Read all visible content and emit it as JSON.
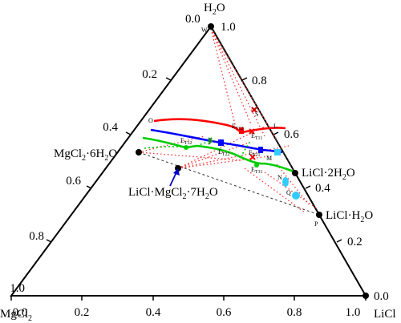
{
  "apex_labels": {
    "top": "H",
    "top_sub": "2",
    "top_tail": "O",
    "left": "MgCl",
    "left_sub": "2",
    "right": "LiCl"
  },
  "ticks": {
    "bottom": [
      "0.0",
      "0.2",
      "0.4",
      "0.6",
      "0.8",
      "1.0"
    ],
    "left": [
      "0.0",
      "0.2",
      "0.4",
      "0.6",
      "0.8",
      "1.0"
    ],
    "right": [
      "1.0",
      "0.8",
      "0.6",
      "0.4",
      "0.2",
      "0.0"
    ]
  },
  "compounds": {
    "mgcl2_6h2o": {
      "a": "MgCl",
      "a_sub": "2",
      "b": "·6H",
      "b_sub": "2",
      "c": "O"
    },
    "licl_2h2o": {
      "a": "LiCl·2H",
      "a_sub": "2",
      "b": "O"
    },
    "licl_h2o": {
      "a": "LiCl·H",
      "a_sub": "2",
      "b": "O"
    },
    "double_salt": {
      "a": "LiCl·MgCl",
      "a_sub": "2",
      "b": "·7H",
      "b_sub": "2",
      "c": "O"
    }
  },
  "points": {
    "W": "W",
    "O": "O",
    "L": "L",
    "M": "M",
    "N": "N",
    "Q": "Q",
    "P": "P",
    "S": "S",
    "ET12": "E",
    "ET12_sub": "T12",
    "ET11": "E",
    "ET11_sub": "T11",
    "ET22": "E",
    "ET22_sub": "T22",
    "ET21": "E",
    "ET21_sub": "T21",
    "ET32": "E",
    "ET32_sub": "T32",
    "ET31": "E",
    "ET31_sub": "T31"
  },
  "colors": {
    "axis": "#000000",
    "red_isotherm": "#ff0000",
    "blue_isotherm": "#0000ff",
    "green_isotherm": "#00cc00",
    "dotted_tie": "#ff3333",
    "cyan_marker": "#33ccff",
    "arrow": "#0000cc"
  }
}
